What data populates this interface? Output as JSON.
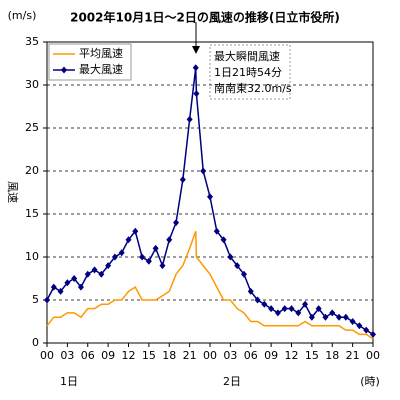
{
  "chart_data": {
    "type": "line",
    "title": "2002年10月1日～2日の風速の推移(日立市役所)",
    "ylabel": "風速",
    "yunit": "(m/s)",
    "xlabel": "(時)",
    "annotation": [
      "最大瞬間風速",
      "1日21時54分",
      "南南東32.0m/s"
    ],
    "x": [
      0,
      1,
      2,
      3,
      4,
      5,
      6,
      7,
      8,
      9,
      10,
      11,
      12,
      13,
      14,
      15,
      16,
      17,
      18,
      19,
      20,
      21,
      21.9,
      22,
      23,
      24,
      25,
      26,
      27,
      28,
      29,
      30,
      31,
      32,
      33,
      34,
      35,
      36,
      37,
      38,
      39,
      40,
      41,
      42,
      43,
      44,
      45,
      46,
      47,
      48
    ],
    "series": [
      {
        "name": "平均風速",
        "color": "#ff9900",
        "marker": "none",
        "values": [
          2,
          3,
          3,
          3.5,
          3.5,
          3,
          4,
          4,
          4.5,
          4.5,
          5,
          5,
          6,
          6.5,
          5,
          5,
          5,
          5.5,
          6,
          8,
          9,
          11,
          13,
          10,
          9,
          8,
          6.5,
          5,
          5,
          4,
          3.5,
          2.5,
          2.5,
          2,
          2,
          2,
          2,
          2,
          2,
          2.5,
          2,
          2,
          2,
          2,
          2,
          1.5,
          1.5,
          1,
          1,
          0.5
        ]
      },
      {
        "name": "最大風速",
        "color": "#000080",
        "marker": "diamond",
        "values": [
          5,
          6.5,
          6,
          7,
          7.5,
          6.5,
          8,
          8.5,
          8,
          9,
          10,
          10.5,
          12,
          13,
          10,
          9.5,
          11,
          9,
          12,
          14,
          19,
          26,
          32,
          29,
          20,
          17,
          13,
          12,
          10,
          9,
          8,
          6,
          5,
          4.5,
          4,
          3.5,
          4,
          4,
          3.5,
          4.5,
          3,
          4,
          3,
          3.5,
          3,
          3,
          2.5,
          2,
          1.5,
          1
        ]
      }
    ],
    "xlim": [
      0,
      48
    ],
    "xticks": [
      {
        "value": 0,
        "label": "00"
      },
      {
        "value": 3,
        "label": "03"
      },
      {
        "value": 6,
        "label": "06"
      },
      {
        "value": 9,
        "label": "09"
      },
      {
        "value": 12,
        "label": "12"
      },
      {
        "value": 15,
        "label": "15"
      },
      {
        "value": 18,
        "label": "18"
      },
      {
        "value": 21,
        "label": "21"
      },
      {
        "value": 24,
        "label": "00"
      },
      {
        "value": 27,
        "label": "03"
      },
      {
        "value": 30,
        "label": "06"
      },
      {
        "value": 33,
        "label": "09"
      },
      {
        "value": 36,
        "label": "12"
      },
      {
        "value": 39,
        "label": "15"
      },
      {
        "value": 42,
        "label": "18"
      },
      {
        "value": 45,
        "label": "21"
      },
      {
        "value": 48,
        "label": "00"
      }
    ],
    "day_labels": [
      {
        "value": 0,
        "label": "1日"
      },
      {
        "value": 24,
        "label": "2日"
      }
    ],
    "ylim": [
      0,
      35
    ],
    "yticks": [
      0,
      5,
      10,
      15,
      20,
      25,
      30,
      35
    ],
    "grid": true,
    "legend": "upper left"
  }
}
